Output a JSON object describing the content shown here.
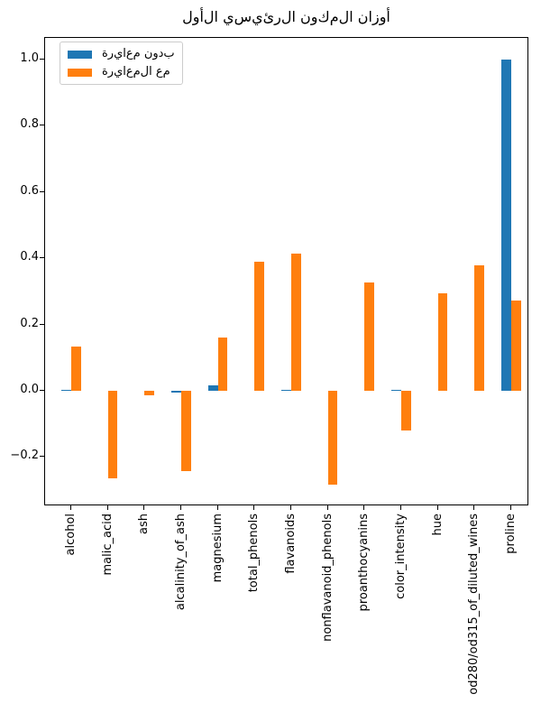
{
  "chart_data": {
    "type": "bar",
    "title": "أوزان المكون الرئيسي الأول",
    "categories": [
      "alcohol",
      "malic_acid",
      "ash",
      "alcalinity_of_ash",
      "magnesium",
      "total_phenols",
      "flavanoids",
      "nonflavanoid_phenols",
      "proanthocyanins",
      "color_intensity",
      "hue",
      "od280/od315_of_diluted_wines",
      "proline"
    ],
    "series": [
      {
        "name": "بدون معايرة",
        "color": "#1f77b4",
        "values": [
          0.002,
          -0.001,
          0.0,
          -0.006,
          0.0155,
          0.001,
          0.003,
          0.0,
          0.001,
          0.003,
          0.0,
          0.001,
          1.0
        ]
      },
      {
        "name": "مع المعايرة",
        "color": "#ff7f0e",
        "values": [
          0.134,
          -0.263,
          -0.013,
          -0.242,
          0.16,
          0.39,
          0.415,
          -0.283,
          0.328,
          -0.12,
          0.293,
          0.379,
          0.273
        ]
      }
    ],
    "xlabel": "",
    "ylabel": "",
    "ylim": [
      -0.347,
      1.064
    ],
    "yticks": [
      1.0,
      0.8,
      0.6,
      0.4,
      0.2,
      0.0,
      -0.2
    ],
    "ytick_labels": [
      "1.0",
      "0.8",
      "0.6",
      "0.4",
      "0.2",
      "0.0",
      "−0.2"
    ],
    "grid": false,
    "legend_position": "upper left",
    "x_tick_rotation_deg": 90
  }
}
